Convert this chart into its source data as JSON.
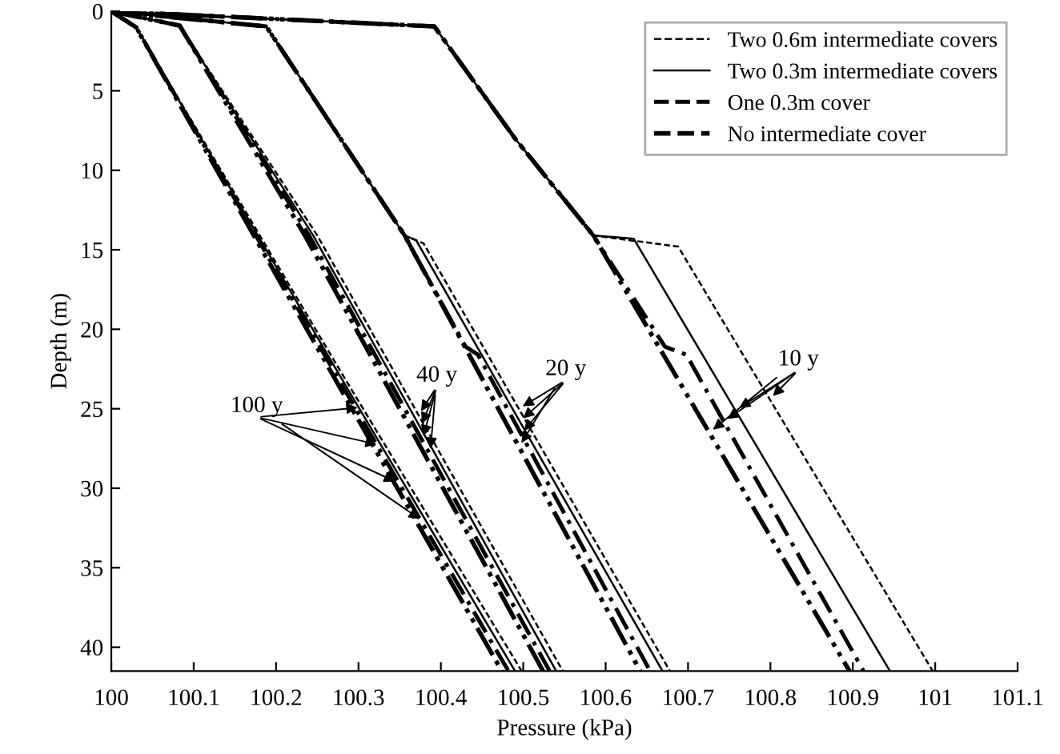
{
  "chart_data": {
    "type": "line",
    "xlabel": "Pressure (kPa)",
    "ylabel": "Depth (m)",
    "xlim": [
      100,
      101.1
    ],
    "xticks": [
      100,
      100.1,
      100.2,
      100.3,
      100.4,
      100.5,
      100.6,
      100.7,
      100.8,
      100.9,
      101,
      101.1
    ],
    "ylim": [
      41.5,
      0
    ],
    "yticks": [
      0,
      5,
      10,
      15,
      20,
      25,
      30,
      35,
      40
    ],
    "grid": false,
    "legend": "top right",
    "marker": "none",
    "series": [
      {
        "name": "Two 0.6m intermediate covers",
        "color": "#000000",
        "line_style": "dashed",
        "x": [
          100,
          100.392,
          100.49,
          100.585,
          100.688,
          100.997
        ],
        "values": [
          0,
          0.95,
          8,
          14.1,
          14.8,
          41.5
        ]
      },
      {
        "name": "Two 0.3m intermediate covers",
        "color": "#000000",
        "line_style": "solid",
        "x": [
          100,
          100.392,
          100.49,
          100.585,
          100.634,
          100.945
        ],
        "values": [
          0,
          0.95,
          8,
          14.1,
          14.3,
          41.5
        ]
      },
      {
        "name": "One 0.3m cover",
        "color": "#000000",
        "line_style": "dashdot",
        "x": [
          100,
          100.392,
          100.49,
          100.585,
          100.672,
          100.698,
          100.913
        ],
        "values": [
          0,
          0.95,
          8,
          14.1,
          21.1,
          21.6,
          41.5
        ]
      },
      {
        "name": "No intermediate cover",
        "color": "#000000",
        "line_style": "dashdotdot",
        "x": [
          100,
          100.392,
          100.49,
          100.585,
          100.896
        ],
        "values": [
          0,
          0.95,
          8,
          14.1,
          41.5
        ]
      },
      {
        "color": "#000000",
        "line_style": "dashed",
        "x": [
          100,
          100.188,
          100.356,
          100.379,
          100.678
        ],
        "values": [
          0,
          0.95,
          14.1,
          14.6,
          41.5
        ]
      },
      {
        "color": "#000000",
        "line_style": "solid",
        "x": [
          100,
          100.188,
          100.356,
          100.37,
          100.669
        ],
        "values": [
          0,
          0.95,
          14.1,
          14.4,
          41.5
        ]
      },
      {
        "color": "#000000",
        "line_style": "dashdot",
        "x": [
          100,
          100.188,
          100.356,
          100.43,
          100.445,
          100.654
        ],
        "values": [
          0,
          0.95,
          14.1,
          21.1,
          21.6,
          41.5
        ]
      },
      {
        "color": "#000000",
        "line_style": "dashdotdot",
        "x": [
          100,
          100.188,
          100.356,
          100.642
        ],
        "values": [
          0,
          0.95,
          14.1,
          41.5
        ]
      },
      {
        "color": "#000000",
        "line_style": "dashed",
        "x": [
          100,
          100.083,
          100.25,
          100.548
        ],
        "values": [
          0,
          0.9,
          14.1,
          41.5
        ]
      },
      {
        "color": "#000000",
        "line_style": "solid",
        "x": [
          100,
          100.083,
          100.245,
          100.54
        ],
        "values": [
          0,
          0.9,
          14.1,
          41.5
        ]
      },
      {
        "color": "#000000",
        "line_style": "dashdot",
        "x": [
          100,
          100.083,
          100.24,
          100.532
        ],
        "values": [
          0,
          0.9,
          14.1,
          41.5
        ]
      },
      {
        "color": "#000000",
        "line_style": "dashdotdot",
        "x": [
          100,
          100.083,
          100.235,
          100.524
        ],
        "values": [
          0,
          0.9,
          14.1,
          41.5
        ]
      },
      {
        "color": "#000000",
        "line_style": "dashed",
        "x": [
          100,
          100.03,
          100.28,
          100.498
        ],
        "values": [
          0,
          1,
          22.8,
          41.5
        ]
      },
      {
        "color": "#000000",
        "line_style": "solid",
        "x": [
          100,
          100.03,
          100.276,
          100.49
        ],
        "values": [
          0,
          1,
          22.8,
          41.5
        ]
      },
      {
        "color": "#000000",
        "line_style": "dashdot",
        "x": [
          100,
          100.03,
          100.272,
          100.482
        ],
        "values": [
          0,
          1,
          22.8,
          41.5
        ]
      },
      {
        "color": "#000000",
        "line_style": "dashdotdot",
        "x": [
          100,
          100.03,
          100.268,
          100.474
        ],
        "values": [
          0,
          1,
          22.8,
          41.5
        ]
      }
    ],
    "annotations": [
      {
        "text": "10 y",
        "x": 100.726,
        "y": 26.5
      },
      {
        "text": "20 y",
        "x": 100.495,
        "y": 27.4
      },
      {
        "text": "40 y",
        "x": 100.387,
        "y": 27.8
      },
      {
        "text": "100 y",
        "x": 100.379,
        "y": 32.1
      }
    ]
  }
}
